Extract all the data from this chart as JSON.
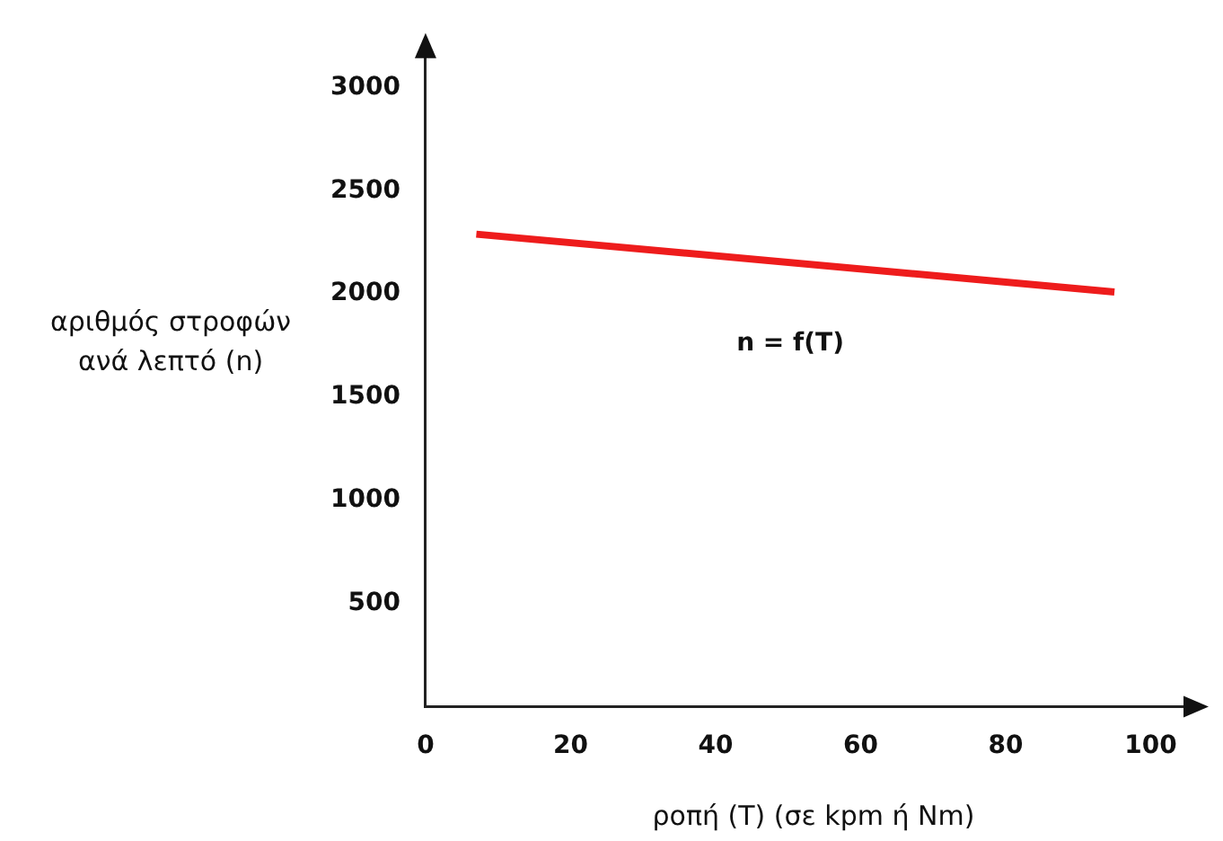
{
  "chart_data": {
    "type": "line",
    "xlabel": "ροπή (T) (σε kpm ή Nm)",
    "ylabel": "αριθμός στροφών ανά λεπτό (n)",
    "x": [
      7,
      95
    ],
    "series": [
      {
        "color": "#ee1c1c",
        "values": [
          2290,
          2010
        ]
      }
    ],
    "xlim": [
      0,
      107
    ],
    "xticks": [
      0,
      20,
      40,
      60,
      80,
      100
    ],
    "ylim": [
      0,
      3230
    ],
    "yticks": [
      500,
      1000,
      1500,
      2000,
      2500,
      3000
    ],
    "grid": false,
    "legend": false,
    "marker": "none",
    "line_style": "solid",
    "annotations": [
      "n = f(T)"
    ]
  }
}
